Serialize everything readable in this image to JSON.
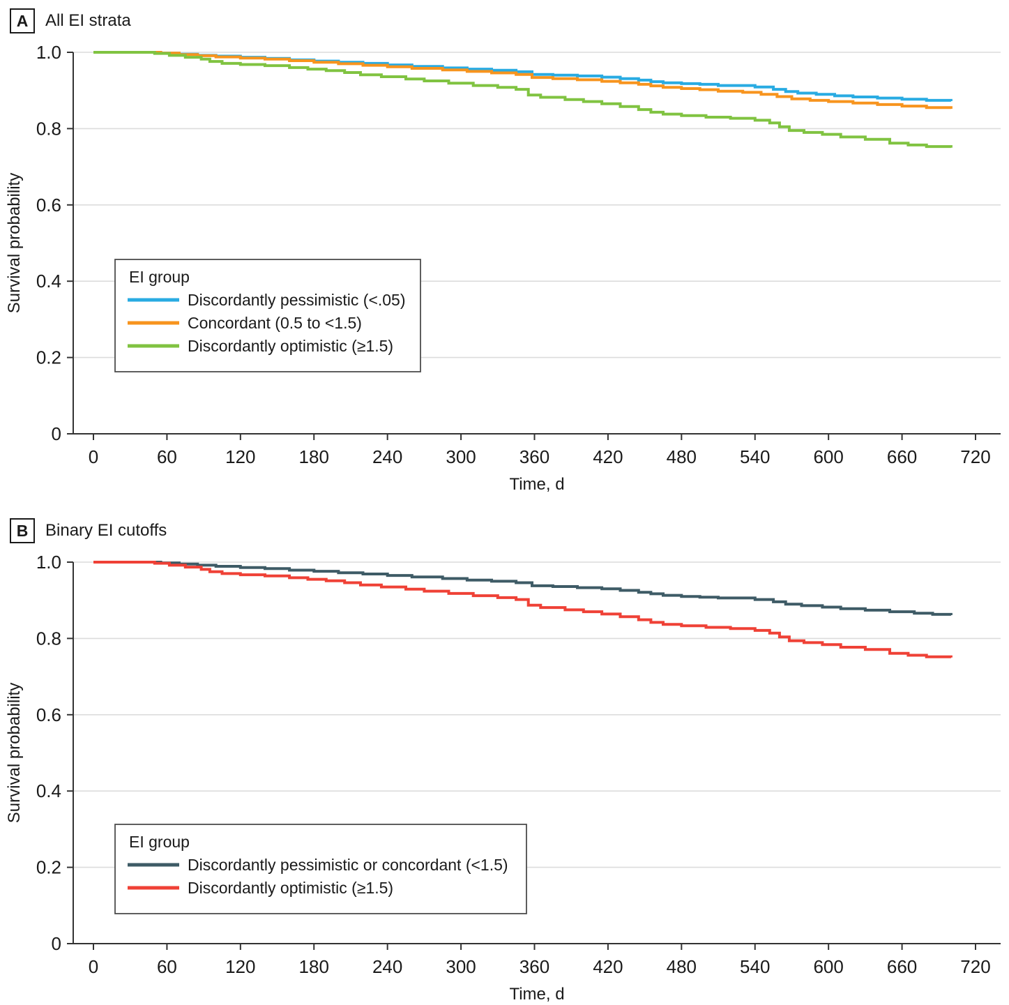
{
  "colors": {
    "text": "#1a1a1a",
    "axis": "#333333",
    "grid": "#dcdcdc",
    "legend_border": "#4d4d4d",
    "background": "#ffffff"
  },
  "chart_data": [
    {
      "type": "line",
      "variant": "kaplan-meier-step",
      "panel_label": "A",
      "title": "All EI strata",
      "xlabel": "Time, d",
      "ylabel": "Survival probability",
      "xlim": [
        0,
        720
      ],
      "ylim": [
        0,
        1.0
      ],
      "x_ticks": [
        0,
        60,
        120,
        180,
        240,
        300,
        360,
        420,
        480,
        540,
        600,
        660,
        720
      ],
      "y_ticks": [
        1.0,
        0.8,
        0.6,
        0.4,
        0.2,
        0
      ],
      "y_tick_labels": [
        "1.0",
        "0.8",
        "0.6",
        "0.4",
        "0.2",
        "0"
      ],
      "grid": "horizontal",
      "legend_title": "EI group",
      "legend_position": "inside-lower-left",
      "series": [
        {
          "name": "Discordantly pessimistic (<.05)",
          "color": "#29abe2",
          "points": [
            [
              0,
              1
            ],
            [
              55,
              0.998
            ],
            [
              70,
              0.995
            ],
            [
              85,
              0.992
            ],
            [
              100,
              0.99
            ],
            [
              120,
              0.987
            ],
            [
              140,
              0.984
            ],
            [
              160,
              0.98
            ],
            [
              180,
              0.977
            ],
            [
              200,
              0.974
            ],
            [
              220,
              0.971
            ],
            [
              240,
              0.967
            ],
            [
              260,
              0.963
            ],
            [
              285,
              0.959
            ],
            [
              305,
              0.956
            ],
            [
              325,
              0.953
            ],
            [
              345,
              0.949
            ],
            [
              358,
              0.942
            ],
            [
              375,
              0.94
            ],
            [
              395,
              0.938
            ],
            [
              415,
              0.935
            ],
            [
              430,
              0.931
            ],
            [
              445,
              0.927
            ],
            [
              455,
              0.923
            ],
            [
              465,
              0.92
            ],
            [
              480,
              0.918
            ],
            [
              495,
              0.916
            ],
            [
              510,
              0.913
            ],
            [
              540,
              0.909
            ],
            [
              555,
              0.903
            ],
            [
              565,
              0.897
            ],
            [
              575,
              0.893
            ],
            [
              590,
              0.89
            ],
            [
              605,
              0.886
            ],
            [
              620,
              0.883
            ],
            [
              640,
              0.88
            ],
            [
              660,
              0.877
            ],
            [
              680,
              0.874
            ],
            [
              700,
              0.872
            ]
          ]
        },
        {
          "name": "Concordant (0.5 to <1.5)",
          "color": "#f7941e",
          "points": [
            [
              0,
              1
            ],
            [
              55,
              0.998
            ],
            [
              70,
              0.994
            ],
            [
              85,
              0.991
            ],
            [
              100,
              0.988
            ],
            [
              120,
              0.985
            ],
            [
              140,
              0.982
            ],
            [
              160,
              0.978
            ],
            [
              180,
              0.974
            ],
            [
              200,
              0.97
            ],
            [
              220,
              0.966
            ],
            [
              240,
              0.962
            ],
            [
              260,
              0.958
            ],
            [
              285,
              0.954
            ],
            [
              305,
              0.95
            ],
            [
              325,
              0.946
            ],
            [
              345,
              0.942
            ],
            [
              358,
              0.934
            ],
            [
              375,
              0.931
            ],
            [
              395,
              0.928
            ],
            [
              415,
              0.924
            ],
            [
              430,
              0.92
            ],
            [
              445,
              0.916
            ],
            [
              455,
              0.912
            ],
            [
              465,
              0.908
            ],
            [
              480,
              0.905
            ],
            [
              495,
              0.902
            ],
            [
              510,
              0.898
            ],
            [
              530,
              0.895
            ],
            [
              545,
              0.89
            ],
            [
              558,
              0.884
            ],
            [
              570,
              0.878
            ],
            [
              585,
              0.874
            ],
            [
              600,
              0.871
            ],
            [
              620,
              0.867
            ],
            [
              640,
              0.863
            ],
            [
              660,
              0.859
            ],
            [
              680,
              0.855
            ],
            [
              700,
              0.852
            ]
          ]
        },
        {
          "name": "Discordantly optimistic (≥1.5)",
          "color": "#80c341",
          "points": [
            [
              0,
              1
            ],
            [
              50,
              0.997
            ],
            [
              62,
              0.992
            ],
            [
              75,
              0.987
            ],
            [
              88,
              0.982
            ],
            [
              95,
              0.976
            ],
            [
              105,
              0.971
            ],
            [
              120,
              0.968
            ],
            [
              140,
              0.965
            ],
            [
              160,
              0.96
            ],
            [
              175,
              0.956
            ],
            [
              190,
              0.952
            ],
            [
              205,
              0.947
            ],
            [
              218,
              0.941
            ],
            [
              235,
              0.936
            ],
            [
              255,
              0.93
            ],
            [
              270,
              0.925
            ],
            [
              290,
              0.919
            ],
            [
              310,
              0.913
            ],
            [
              330,
              0.908
            ],
            [
              345,
              0.903
            ],
            [
              355,
              0.888
            ],
            [
              365,
              0.882
            ],
            [
              385,
              0.876
            ],
            [
              400,
              0.871
            ],
            [
              415,
              0.865
            ],
            [
              430,
              0.858
            ],
            [
              445,
              0.85
            ],
            [
              455,
              0.843
            ],
            [
              465,
              0.838
            ],
            [
              480,
              0.834
            ],
            [
              500,
              0.83
            ],
            [
              520,
              0.827
            ],
            [
              540,
              0.822
            ],
            [
              552,
              0.815
            ],
            [
              560,
              0.805
            ],
            [
              568,
              0.795
            ],
            [
              580,
              0.79
            ],
            [
              595,
              0.785
            ],
            [
              610,
              0.778
            ],
            [
              630,
              0.772
            ],
            [
              650,
              0.762
            ],
            [
              665,
              0.757
            ],
            [
              680,
              0.753
            ],
            [
              700,
              0.75
            ]
          ]
        }
      ]
    },
    {
      "type": "line",
      "variant": "kaplan-meier-step",
      "panel_label": "B",
      "title": "Binary EI cutoffs",
      "xlabel": "Time, d",
      "ylabel": "Survival probability",
      "xlim": [
        0,
        720
      ],
      "ylim": [
        0,
        1.0
      ],
      "x_ticks": [
        0,
        60,
        120,
        180,
        240,
        300,
        360,
        420,
        480,
        540,
        600,
        660,
        720
      ],
      "y_ticks": [
        1.0,
        0.8,
        0.6,
        0.4,
        0.2,
        0
      ],
      "y_tick_labels": [
        "1.0",
        "0.8",
        "0.6",
        "0.4",
        "0.2",
        "0"
      ],
      "grid": "horizontal",
      "legend_title": "EI group",
      "legend_position": "inside-lower-left",
      "series": [
        {
          "name": "Discordantly pessimistic or concordant (<1.5)",
          "color": "#3e5b66",
          "points": [
            [
              0,
              1
            ],
            [
              55,
              0.998
            ],
            [
              70,
              0.995
            ],
            [
              85,
              0.992
            ],
            [
              100,
              0.989
            ],
            [
              120,
              0.986
            ],
            [
              140,
              0.983
            ],
            [
              160,
              0.979
            ],
            [
              180,
              0.976
            ],
            [
              200,
              0.972
            ],
            [
              220,
              0.969
            ],
            [
              240,
              0.965
            ],
            [
              260,
              0.961
            ],
            [
              285,
              0.957
            ],
            [
              305,
              0.953
            ],
            [
              325,
              0.95
            ],
            [
              345,
              0.946
            ],
            [
              358,
              0.938
            ],
            [
              375,
              0.936
            ],
            [
              395,
              0.933
            ],
            [
              415,
              0.93
            ],
            [
              430,
              0.926
            ],
            [
              445,
              0.921
            ],
            [
              455,
              0.917
            ],
            [
              465,
              0.913
            ],
            [
              480,
              0.91
            ],
            [
              495,
              0.908
            ],
            [
              510,
              0.906
            ],
            [
              540,
              0.902
            ],
            [
              555,
              0.896
            ],
            [
              565,
              0.89
            ],
            [
              578,
              0.886
            ],
            [
              595,
              0.882
            ],
            [
              610,
              0.878
            ],
            [
              630,
              0.874
            ],
            [
              650,
              0.87
            ],
            [
              670,
              0.866
            ],
            [
              685,
              0.863
            ],
            [
              700,
              0.861
            ]
          ]
        },
        {
          "name": "Discordantly optimistic (≥1.5)",
          "color": "#ef4136",
          "points": [
            [
              0,
              1
            ],
            [
              50,
              0.997
            ],
            [
              62,
              0.992
            ],
            [
              75,
              0.987
            ],
            [
              88,
              0.981
            ],
            [
              95,
              0.975
            ],
            [
              105,
              0.97
            ],
            [
              120,
              0.967
            ],
            [
              140,
              0.964
            ],
            [
              160,
              0.959
            ],
            [
              175,
              0.955
            ],
            [
              190,
              0.951
            ],
            [
              205,
              0.946
            ],
            [
              218,
              0.94
            ],
            [
              235,
              0.935
            ],
            [
              255,
              0.929
            ],
            [
              270,
              0.924
            ],
            [
              290,
              0.918
            ],
            [
              310,
              0.912
            ],
            [
              330,
              0.907
            ],
            [
              345,
              0.902
            ],
            [
              355,
              0.887
            ],
            [
              365,
              0.881
            ],
            [
              385,
              0.875
            ],
            [
              400,
              0.87
            ],
            [
              415,
              0.864
            ],
            [
              430,
              0.857
            ],
            [
              445,
              0.849
            ],
            [
              455,
              0.842
            ],
            [
              465,
              0.837
            ],
            [
              480,
              0.833
            ],
            [
              500,
              0.829
            ],
            [
              520,
              0.826
            ],
            [
              540,
              0.821
            ],
            [
              552,
              0.814
            ],
            [
              560,
              0.804
            ],
            [
              568,
              0.794
            ],
            [
              580,
              0.789
            ],
            [
              595,
              0.784
            ],
            [
              610,
              0.777
            ],
            [
              630,
              0.771
            ],
            [
              650,
              0.761
            ],
            [
              665,
              0.756
            ],
            [
              680,
              0.752
            ],
            [
              700,
              0.75
            ]
          ]
        }
      ]
    }
  ]
}
